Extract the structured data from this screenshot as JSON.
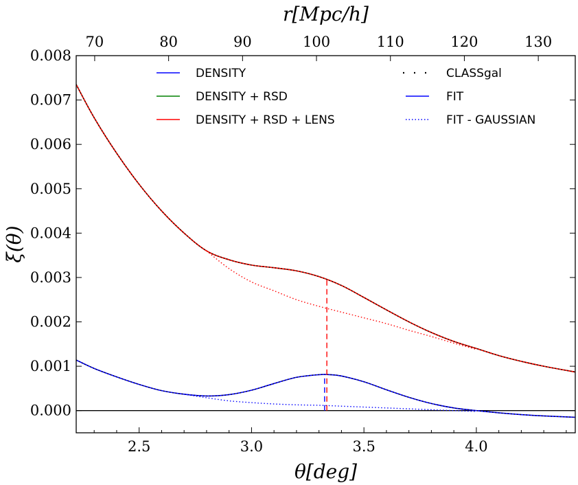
{
  "chart_data": {
    "type": "line",
    "title": "",
    "xlabel": "θ[deg]",
    "ylabel": "ξ(θ)",
    "x2label": "r[Mpc/h]",
    "xlim": [
      2.22,
      4.44
    ],
    "ylim": [
      -0.0005,
      0.008
    ],
    "x2lim": [
      67.5,
      135
    ],
    "x_ticks": [
      {
        "v": 2.5,
        "label": "2.5"
      },
      {
        "v": 3.0,
        "label": "3.0"
      },
      {
        "v": 3.5,
        "label": "3.5"
      },
      {
        "v": 4.0,
        "label": "4.0"
      }
    ],
    "x2_ticks": [
      {
        "v": 70,
        "label": "70"
      },
      {
        "v": 80,
        "label": "80"
      },
      {
        "v": 90,
        "label": "90"
      },
      {
        "v": 100,
        "label": "100"
      },
      {
        "v": 110,
        "label": "110"
      },
      {
        "v": 120,
        "label": "120"
      },
      {
        "v": 130,
        "label": "130"
      }
    ],
    "y_ticks": [
      {
        "v": 0.0,
        "label": "0.000"
      },
      {
        "v": 0.001,
        "label": "0.001"
      },
      {
        "v": 0.002,
        "label": "0.002"
      },
      {
        "v": 0.003,
        "label": "0.003"
      },
      {
        "v": 0.004,
        "label": "0.004"
      },
      {
        "v": 0.005,
        "label": "0.005"
      },
      {
        "v": 0.006,
        "label": "0.006"
      },
      {
        "v": 0.007,
        "label": "0.007"
      },
      {
        "v": 0.008,
        "label": "0.008"
      }
    ],
    "legend_position": "top",
    "grid": false,
    "series": [
      {
        "name": "DENSITY",
        "color": "#0000ff",
        "style": "solid",
        "x": [
          2.22,
          2.3,
          2.4,
          2.5,
          2.6,
          2.7,
          2.8,
          2.9,
          3.0,
          3.1,
          3.2,
          3.3,
          3.35,
          3.4,
          3.5,
          3.6,
          3.7,
          3.8,
          3.9,
          4.0,
          4.1,
          4.2,
          4.3,
          4.44
        ],
        "y": [
          0.00114,
          0.00095,
          0.00076,
          0.00059,
          0.00045,
          0.00037,
          0.00033,
          0.00036,
          0.00046,
          0.00061,
          0.00075,
          0.00081,
          0.00081,
          0.00078,
          0.00065,
          0.00047,
          0.0003,
          0.00016,
          6e-05,
          0.0,
          -5e-05,
          -9e-05,
          -0.00012,
          -0.00015
        ]
      },
      {
        "name": "DENSITY + RSD",
        "color": "#008000",
        "style": "solid",
        "x": [
          2.22,
          2.3,
          2.4,
          2.5,
          2.6,
          2.7,
          2.8,
          2.9,
          3.0,
          3.1,
          3.2,
          3.3,
          3.4,
          3.5,
          3.6,
          3.7,
          3.8,
          3.9,
          4.0,
          4.1,
          4.2,
          4.3,
          4.44
        ],
        "y": [
          0.00735,
          0.0066,
          0.0058,
          0.0051,
          0.0045,
          0.004,
          0.0036,
          0.0034,
          0.00328,
          0.00322,
          0.00315,
          0.00302,
          0.00282,
          0.00255,
          0.00227,
          0.002,
          0.00176,
          0.00156,
          0.0014,
          0.00124,
          0.00111,
          0.001,
          0.00087
        ]
      },
      {
        "name": "DENSITY + RSD + LENS",
        "color": "#ff0000",
        "style": "solid",
        "x": [
          2.22,
          2.3,
          2.4,
          2.5,
          2.6,
          2.7,
          2.8,
          2.9,
          3.0,
          3.1,
          3.2,
          3.3,
          3.4,
          3.5,
          3.6,
          3.7,
          3.8,
          3.9,
          4.0,
          4.1,
          4.2,
          4.3,
          4.44
        ],
        "y": [
          0.00735,
          0.0066,
          0.0058,
          0.0051,
          0.0045,
          0.004,
          0.0036,
          0.0034,
          0.00328,
          0.00322,
          0.00315,
          0.00302,
          0.00282,
          0.00255,
          0.00227,
          0.002,
          0.00176,
          0.00156,
          0.0014,
          0.00124,
          0.00111,
          0.001,
          0.00087
        ]
      },
      {
        "name": "CLASSgal",
        "color": "#000000",
        "style": "dotted",
        "x": [
          2.22,
          2.3,
          2.4,
          2.5,
          2.6,
          2.7,
          2.8,
          2.9,
          3.0,
          3.1,
          3.2,
          3.3,
          3.4,
          3.5,
          3.6,
          3.7,
          3.8,
          3.9,
          4.0,
          4.1,
          4.2,
          4.3,
          4.44
        ],
        "y": [
          0.00735,
          0.0066,
          0.0058,
          0.0051,
          0.0045,
          0.004,
          0.0036,
          0.0034,
          0.00328,
          0.00322,
          0.00315,
          0.00302,
          0.00282,
          0.00255,
          0.00227,
          0.002,
          0.00176,
          0.00156,
          0.0014,
          0.00124,
          0.00111,
          0.001,
          0.00087
        ]
      },
      {
        "name": "CLASSgal",
        "color": "#000000",
        "style": "dotted",
        "x": [
          2.22,
          2.3,
          2.4,
          2.5,
          2.6,
          2.7,
          2.8,
          2.9,
          3.0,
          3.1,
          3.2,
          3.3,
          3.35,
          3.4,
          3.5,
          3.6,
          3.7,
          3.8,
          3.9,
          4.0,
          4.1,
          4.2,
          4.3,
          4.44
        ],
        "y": [
          0.00114,
          0.00095,
          0.00076,
          0.00059,
          0.00045,
          0.00037,
          0.00033,
          0.00036,
          0.00046,
          0.00061,
          0.00075,
          0.00081,
          0.00081,
          0.00078,
          0.00065,
          0.00047,
          0.0003,
          0.00016,
          6e-05,
          0.0,
          -5e-05,
          -9e-05,
          -0.00012,
          -0.00015
        ]
      },
      {
        "name": "FIT - GAUSSIAN",
        "color": "#ff0000",
        "style": "dotted",
        "x": [
          2.8,
          2.9,
          3.0,
          3.1,
          3.2,
          3.3,
          3.4,
          3.5,
          3.6,
          3.7,
          3.8,
          3.9,
          4.0
        ],
        "y": [
          0.0036,
          0.0032,
          0.0029,
          0.0027,
          0.0025,
          0.00235,
          0.00222,
          0.00209,
          0.00196,
          0.00181,
          0.00167,
          0.00152,
          0.00138
        ]
      },
      {
        "name": "FIT - GAUSSIAN",
        "color": "#0000ff",
        "style": "dotted",
        "x": [
          2.7,
          2.8,
          2.9,
          3.0,
          3.1,
          3.2,
          3.3,
          3.4,
          3.5,
          3.6,
          3.7,
          3.8,
          3.9,
          4.0
        ],
        "y": [
          0.00037,
          0.00029,
          0.00022,
          0.00018,
          0.00015,
          0.00013,
          0.00012,
          0.0001,
          8e-05,
          6e-05,
          4e-05,
          2e-05,
          0.0,
          -2e-05
        ]
      }
    ],
    "vlines": [
      {
        "x": 3.335,
        "y0": 0.0,
        "y1": 0.00295,
        "color": "#ff0000",
        "style": "dashed"
      },
      {
        "x": 3.325,
        "y0": 0.0,
        "y1": 0.00081,
        "color": "#0000ff",
        "style": "dashed"
      }
    ],
    "hline": {
      "y": 0.0,
      "color": "#000000"
    },
    "legend": {
      "left": [
        {
          "label": "DENSITY",
          "color": "#0000ff",
          "style": "solid"
        },
        {
          "label": "DENSITY + RSD",
          "color": "#008000",
          "style": "solid"
        },
        {
          "label": "DENSITY + RSD + LENS",
          "color": "#ff0000",
          "style": "solid"
        }
      ],
      "right": [
        {
          "label": "CLASSgal",
          "color": "#000000",
          "style": "dotted-sparse"
        },
        {
          "label": "FIT",
          "color": "#0000ff",
          "style": "solid"
        },
        {
          "label": "FIT - GAUSSIAN",
          "color": "#0000ff",
          "style": "dotted"
        }
      ]
    }
  }
}
